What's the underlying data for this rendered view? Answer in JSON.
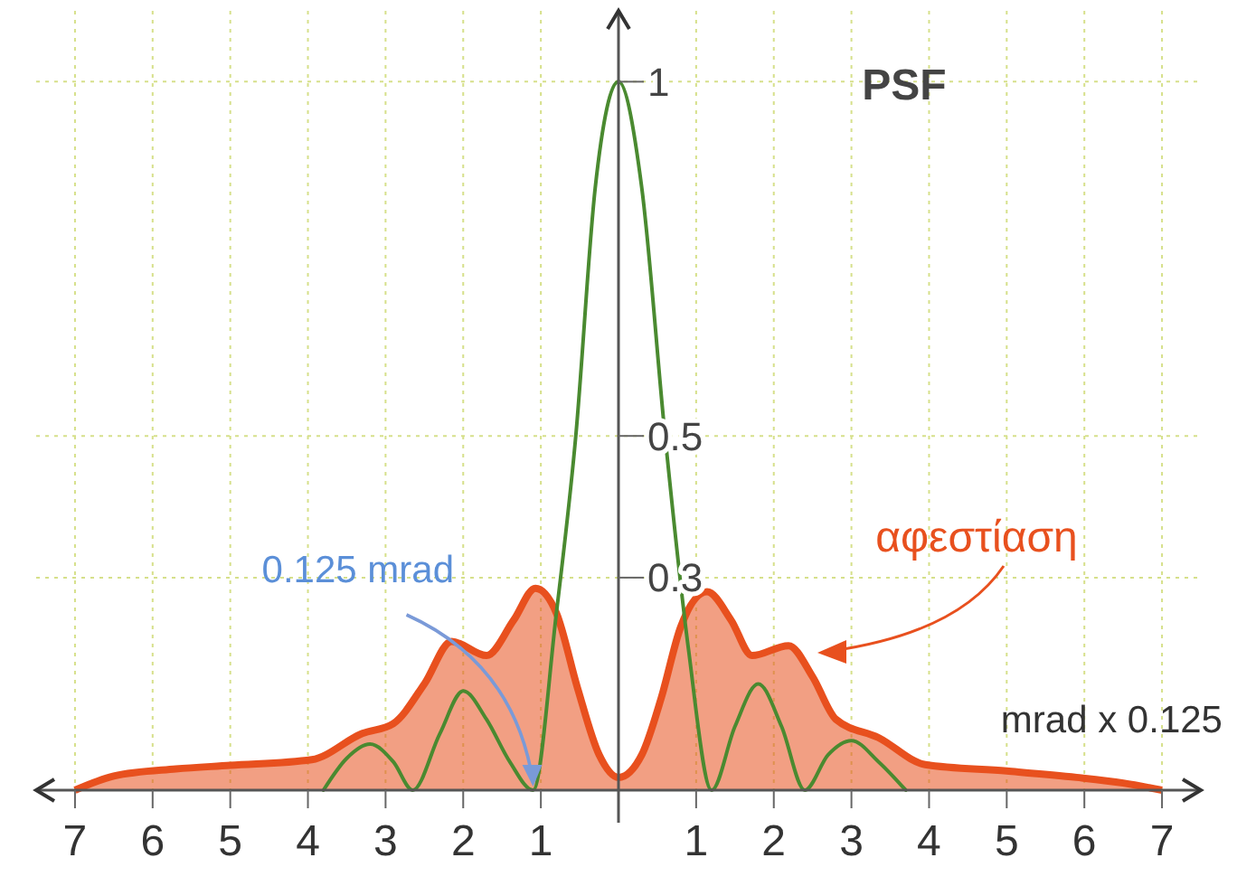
{
  "chart_data": {
    "type": "line",
    "title": "PSF",
    "xlabel": "mrad x 0.125",
    "xlim": [
      -7.5,
      7.5
    ],
    "xticks": [
      {
        "value": -7,
        "label": "7"
      },
      {
        "value": -6,
        "label": "6"
      },
      {
        "value": -5,
        "label": "5"
      },
      {
        "value": -4,
        "label": "4"
      },
      {
        "value": -3,
        "label": "3"
      },
      {
        "value": -2,
        "label": "2"
      },
      {
        "value": -1,
        "label": "1"
      },
      {
        "value": 1,
        "label": "1"
      },
      {
        "value": 2,
        "label": "2"
      },
      {
        "value": 3,
        "label": "3"
      },
      {
        "value": 4,
        "label": "4"
      },
      {
        "value": 5,
        "label": "5"
      },
      {
        "value": 6,
        "label": "6"
      },
      {
        "value": 7,
        "label": "7"
      }
    ],
    "ylim": [
      0,
      1.1
    ],
    "yticks": [
      0.3,
      0.5,
      1
    ],
    "grid": true,
    "series": [
      {
        "type": "area",
        "name": "αφεστίαση",
        "color": "#e8501e",
        "x": [
          -7,
          -6.5,
          -5.7,
          -5,
          -3.95,
          -3.3,
          -2.9,
          -2.5,
          -2.15,
          -1.7,
          -1.35,
          -1.07,
          -0.8,
          -0.53,
          -0.25,
          0,
          0.3,
          0.55,
          0.8,
          1.14,
          1.45,
          1.72,
          2.19,
          2.5,
          2.8,
          3.35,
          3.95,
          5,
          5.9,
          6.5,
          7
        ],
        "values": [
          0,
          0.02,
          0.03,
          0.035,
          0.043,
          0.08,
          0.094,
          0.15,
          0.21,
          0.19,
          0.24,
          0.285,
          0.25,
          0.145,
          0.05,
          0.018,
          0.05,
          0.13,
          0.23,
          0.28,
          0.24,
          0.19,
          0.204,
          0.16,
          0.1,
          0.074,
          0.036,
          0.027,
          0.018,
          0.01,
          0
        ]
      },
      {
        "color": "#4a8a30",
        "x": [
          -3.8,
          -3.5,
          -3.2,
          -2.9,
          -2.65,
          -2.3,
          -2,
          -1.7,
          -1.4,
          -1.1,
          -0.8,
          -0.55,
          -0.3,
          0,
          0.3,
          0.6,
          0.9,
          1.2,
          1.5,
          1.8,
          2.1,
          2.4,
          2.7,
          3,
          3.35,
          3.7
        ],
        "values": [
          0,
          0.045,
          0.065,
          0.04,
          0,
          0.08,
          0.14,
          0.1,
          0.04,
          0,
          0.25,
          0.5,
          0.85,
          1,
          0.85,
          0.5,
          0.2,
          0,
          0.09,
          0.15,
          0.09,
          0,
          0.05,
          0.07,
          0.04,
          0
        ]
      }
    ],
    "annotations": [
      {
        "text": "0.125 mrad",
        "x": -1.1,
        "y": 0
      }
    ]
  }
}
